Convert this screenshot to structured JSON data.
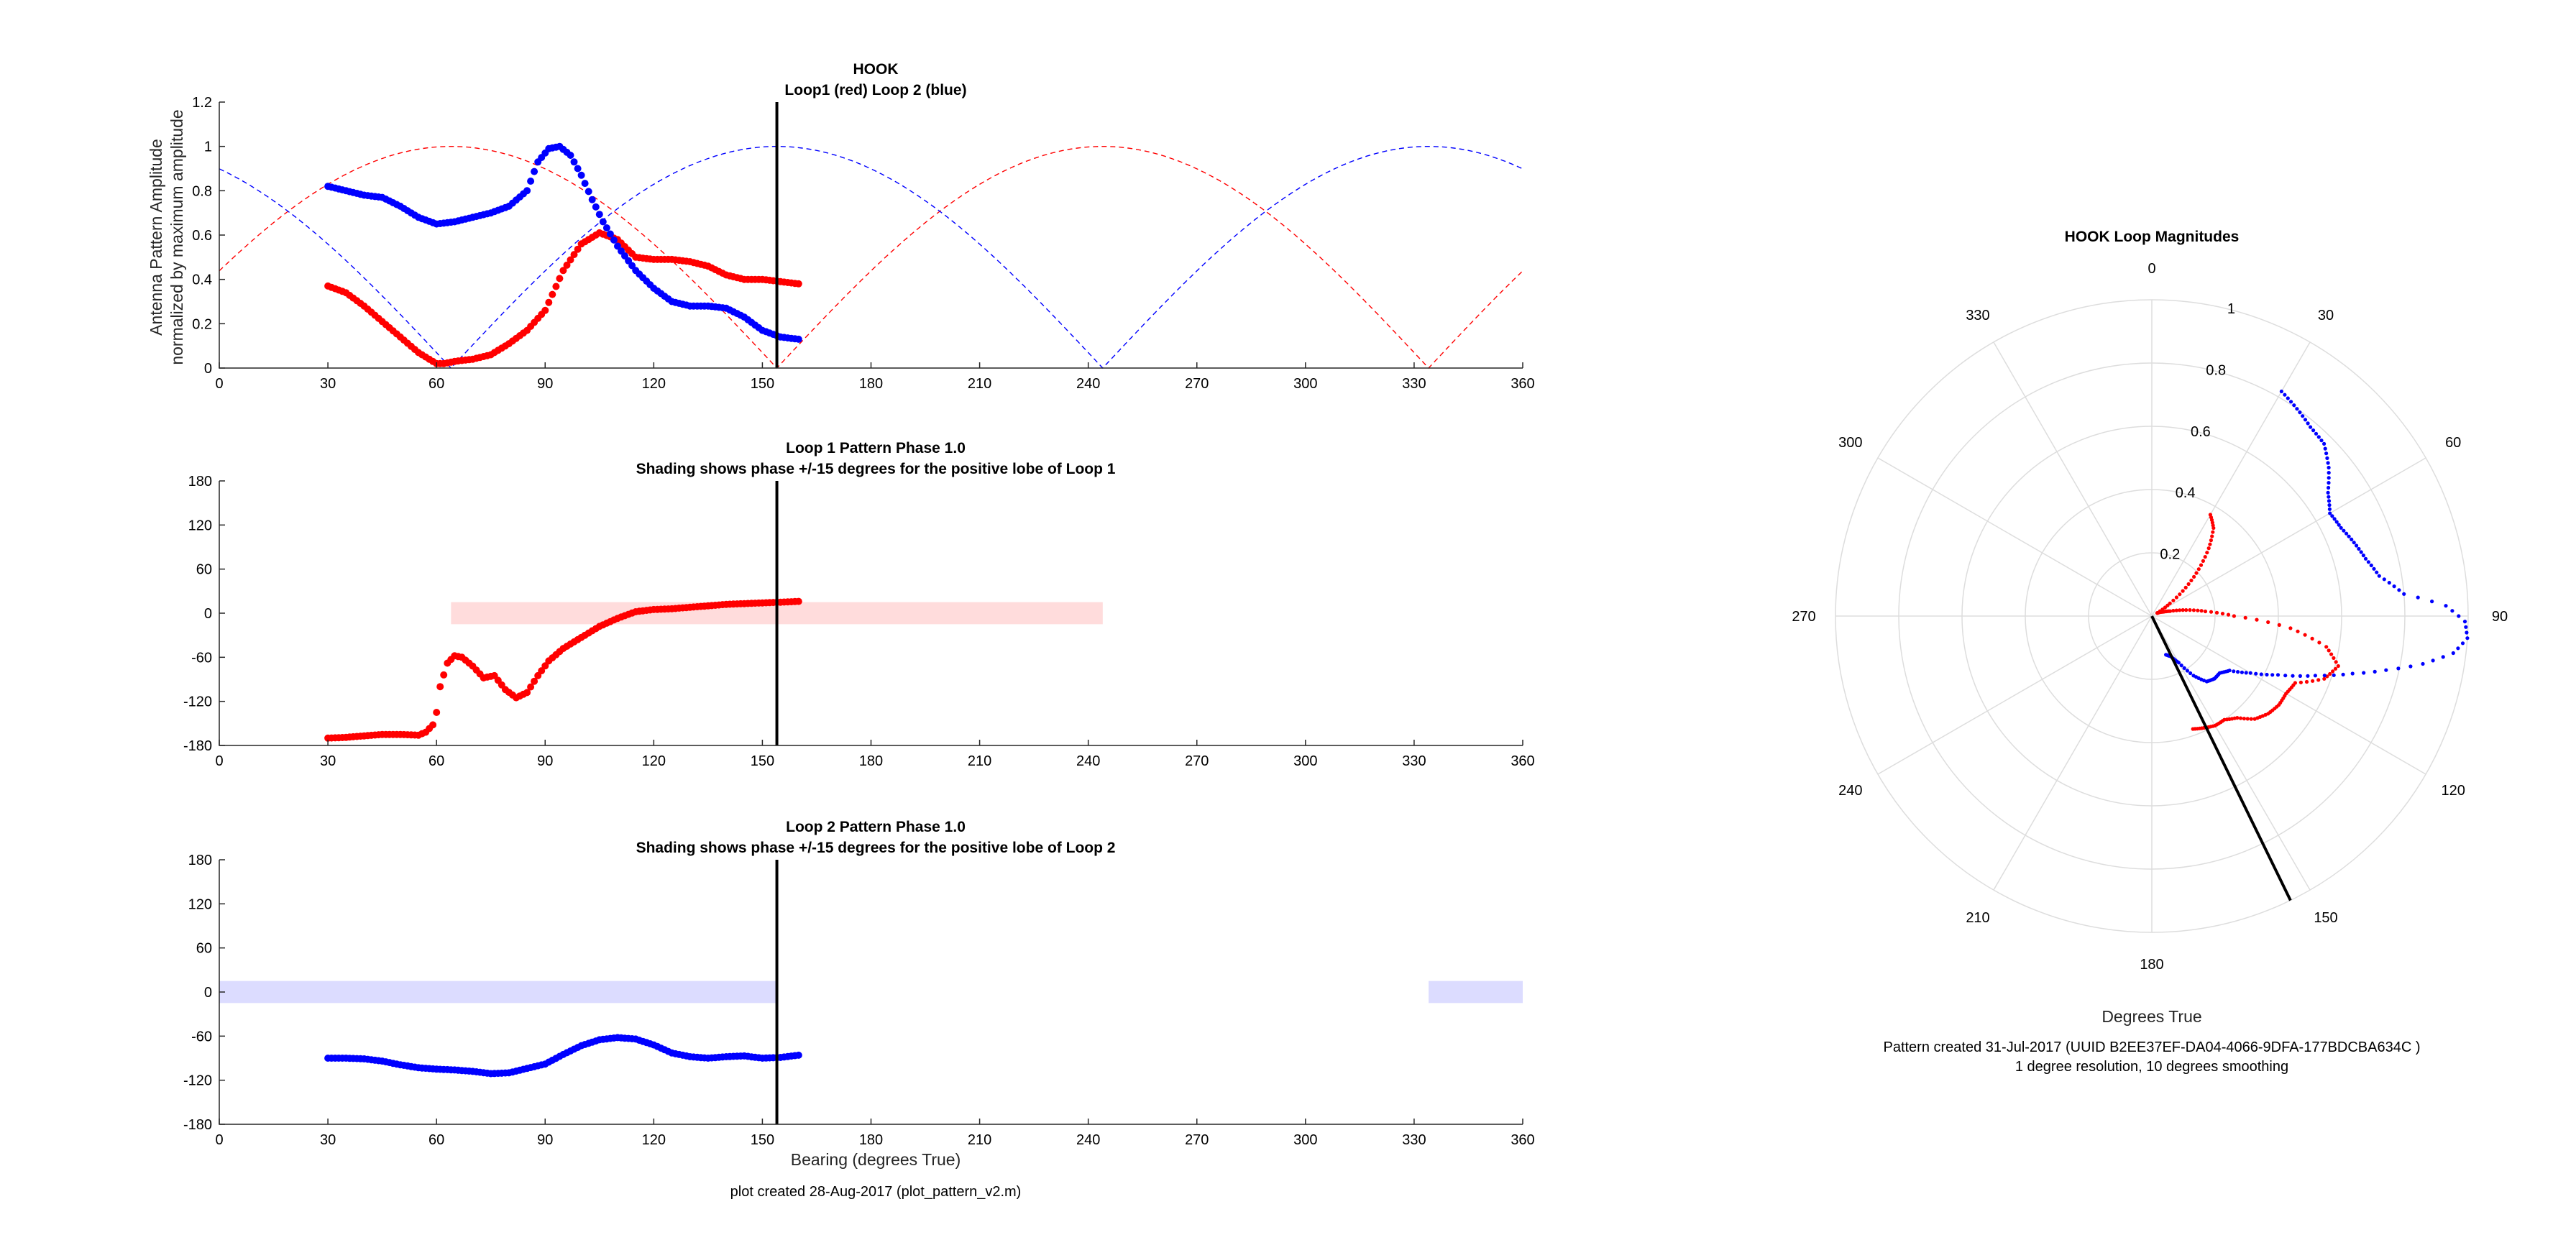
{
  "colors": {
    "loop1": "#ff0000",
    "loop2": "#0000ff",
    "shade1": "#ffdcdc",
    "shade2": "#dcdcff",
    "bearing": "#000000"
  },
  "footer": {
    "plot_created": "plot created 28-Aug-2017 (plot_pattern_v2.m)"
  },
  "chart_data": [
    {
      "type": "line",
      "id": "amplitude",
      "title": "HOOK",
      "subtitle": "Loop1 (red) Loop 2 (blue)",
      "xlabel": "",
      "ylabel": [
        "Antenna Pattern Amplitude",
        "normalized by maximum amplitude"
      ],
      "xlim": [
        0,
        360
      ],
      "ylim": [
        0,
        1.2
      ],
      "xticks": [
        0,
        30,
        60,
        90,
        120,
        150,
        180,
        210,
        240,
        270,
        300,
        330,
        360
      ],
      "yticks": [
        0,
        0.2,
        0.4,
        0.6,
        0.8,
        1,
        1.2
      ],
      "ytick_labels": [
        "0",
        "0.2",
        "0.4",
        "0.6",
        "0.8",
        "1",
        "1.2"
      ],
      "bearing_line": 154,
      "theory": [
        {
          "name": "loop1-theoretical",
          "color": "#ff0000",
          "style": "dashed",
          "formula": "abs(cos(x-244))"
        },
        {
          "name": "loop2-theoretical",
          "color": "#0000ff",
          "style": "dashed",
          "formula": "abs(cos(x-334))"
        }
      ],
      "series": [
        {
          "color": "#ff0000",
          "style": "dots",
          "x": [
            30,
            35,
            40,
            45,
            50,
            55,
            60,
            62,
            65,
            70,
            75,
            80,
            85,
            90,
            95,
            100,
            105,
            110,
            115,
            120,
            125,
            130,
            135,
            140,
            145,
            150,
            155,
            160
          ],
          "y": [
            0.37,
            0.34,
            0.28,
            0.21,
            0.14,
            0.07,
            0.02,
            0.02,
            0.03,
            0.04,
            0.06,
            0.11,
            0.17,
            0.26,
            0.44,
            0.56,
            0.61,
            0.58,
            0.5,
            0.49,
            0.49,
            0.48,
            0.46,
            0.42,
            0.4,
            0.4,
            0.39,
            0.38
          ]
        },
        {
          "color": "#0000ff",
          "style": "dots",
          "x": [
            30,
            35,
            40,
            45,
            50,
            55,
            60,
            65,
            70,
            75,
            80,
            85,
            88,
            91,
            94,
            97,
            100,
            103,
            106,
            110,
            115,
            120,
            125,
            130,
            135,
            140,
            145,
            150,
            155,
            160
          ],
          "y": [
            0.82,
            0.8,
            0.78,
            0.77,
            0.73,
            0.68,
            0.65,
            0.66,
            0.68,
            0.7,
            0.73,
            0.8,
            0.93,
            0.99,
            1.0,
            0.96,
            0.87,
            0.76,
            0.66,
            0.55,
            0.44,
            0.36,
            0.3,
            0.28,
            0.28,
            0.27,
            0.23,
            0.17,
            0.14,
            0.13
          ]
        }
      ]
    },
    {
      "type": "scatter",
      "id": "loop1-phase",
      "title": "Loop 1 Pattern Phase 1.0",
      "subtitle": "Shading shows phase +/-15 degrees for the positive lobe of Loop 1",
      "xlim": [
        0,
        360
      ],
      "ylim": [
        -180,
        180
      ],
      "xticks": [
        0,
        30,
        60,
        90,
        120,
        150,
        180,
        210,
        240,
        270,
        300,
        330,
        360
      ],
      "yticks": [
        -180,
        -120,
        -60,
        0,
        60,
        120,
        180
      ],
      "bearing_line": 154,
      "shading": [
        {
          "x": [
            64,
            244
          ],
          "y": [
            -15,
            15
          ],
          "color": "#ffdcdc"
        }
      ],
      "series": [
        {
          "color": "#ff0000",
          "x": [
            30,
            35,
            40,
            45,
            50,
            55,
            57,
            59,
            60,
            61,
            63,
            65,
            67,
            70,
            73,
            76,
            79,
            82,
            85,
            88,
            91,
            95,
            100,
            105,
            110,
            115,
            120,
            125,
            130,
            135,
            140,
            145,
            150,
            155,
            160
          ],
          "y": [
            -170,
            -169,
            -167,
            -165,
            -165,
            -166,
            -162,
            -152,
            -135,
            -100,
            -68,
            -58,
            -60,
            -72,
            -88,
            -85,
            -104,
            -115,
            -108,
            -85,
            -65,
            -48,
            -33,
            -18,
            -7,
            2,
            5,
            6,
            8,
            10,
            12,
            13,
            14,
            15,
            16
          ]
        }
      ]
    },
    {
      "type": "line",
      "id": "loop2-phase",
      "title": "Loop 2 Pattern Phase 1.0",
      "subtitle": "Shading shows phase +/-15 degrees for the positive lobe of Loop 2",
      "xlabel": "Bearing (degrees True)",
      "xlim": [
        0,
        360
      ],
      "ylim": [
        -180,
        180
      ],
      "xticks": [
        0,
        30,
        60,
        90,
        120,
        150,
        180,
        210,
        240,
        270,
        300,
        330,
        360
      ],
      "yticks": [
        -180,
        -120,
        -60,
        0,
        60,
        120,
        180
      ],
      "bearing_line": 154,
      "shading": [
        {
          "x": [
            0,
            154
          ],
          "y": [
            -15,
            15
          ],
          "color": "#dcdcff"
        },
        {
          "x": [
            334,
            360
          ],
          "y": [
            -15,
            15
          ],
          "color": "#dcdcff"
        }
      ],
      "series": [
        {
          "color": "#0000ff",
          "x": [
            30,
            35,
            40,
            45,
            50,
            55,
            60,
            65,
            70,
            75,
            80,
            85,
            90,
            95,
            100,
            105,
            110,
            115,
            120,
            125,
            130,
            135,
            140,
            145,
            150,
            155,
            160
          ],
          "y": [
            -90,
            -90,
            -91,
            -94,
            -99,
            -103,
            -105,
            -106,
            -108,
            -111,
            -110,
            -104,
            -98,
            -85,
            -73,
            -65,
            -62,
            -64,
            -72,
            -83,
            -88,
            -90,
            -88,
            -87,
            -90,
            -89,
            -86
          ]
        }
      ]
    },
    {
      "type": "polar",
      "id": "loop-magnitudes",
      "title": "HOOK Loop Magnitudes",
      "xlabel": "Degrees True",
      "rlim": [
        0,
        1
      ],
      "rticks": [
        0.2,
        0.4,
        0.6,
        0.8,
        1
      ],
      "rtick_labels": [
        "0.2",
        "0.4",
        "0.6",
        "0.8",
        "1"
      ],
      "theta_labels": [
        "0",
        "30",
        "60",
        "90",
        "120",
        "150",
        "180",
        "210",
        "240",
        "270",
        "300",
        "330"
      ],
      "bearing_line": 154,
      "notes": [
        "Pattern created 31-Jul-2017 (UUID B2EE37EF-DA04-4066-9DFA-177BDCBA634C )",
        "1 degree resolution, 10 degrees smoothing"
      ],
      "series_ref": [
        "amplitude:0",
        "amplitude:1"
      ]
    }
  ]
}
